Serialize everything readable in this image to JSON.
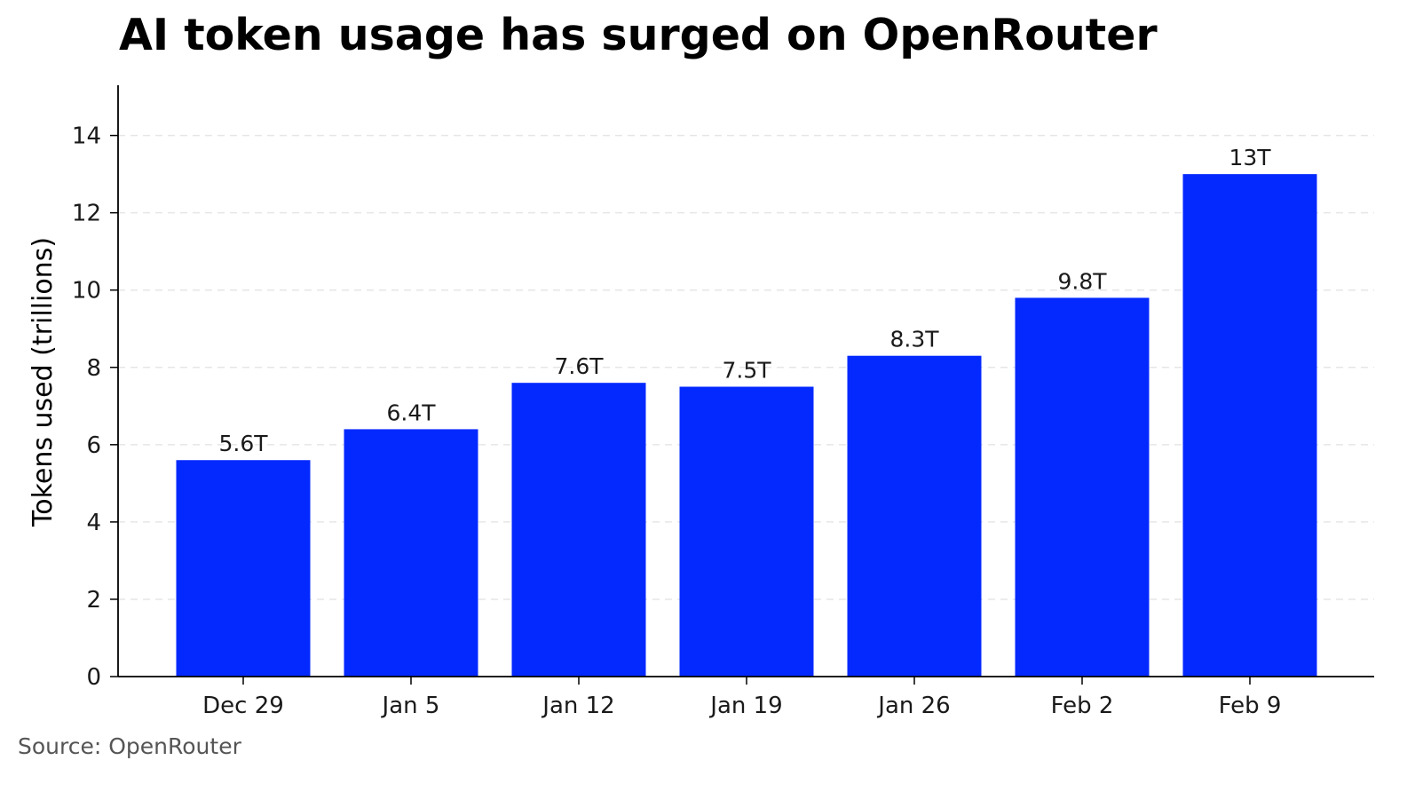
{
  "title": "AI token usage has surged on OpenRouter",
  "source": "Source: OpenRouter",
  "colors": {
    "bar": "#0429ff",
    "grid": "#e6e6e6",
    "axis": "#000000"
  },
  "chart_data": {
    "type": "bar",
    "title": "AI token usage has surged on OpenRouter",
    "xlabel": "",
    "ylabel": "Tokens used (trillions)",
    "categories": [
      "Dec 29",
      "Jan 5",
      "Jan 12",
      "Jan 19",
      "Jan 26",
      "Feb 2",
      "Feb 9"
    ],
    "values": [
      5.6,
      6.4,
      7.6,
      7.5,
      8.3,
      9.8,
      13
    ],
    "data_labels": [
      "5.6T",
      "6.4T",
      "7.6T",
      "7.5T",
      "8.3T",
      "9.8T",
      "13T"
    ],
    "yticks": [
      0,
      2,
      4,
      6,
      8,
      10,
      12,
      14
    ],
    "ylim": [
      0,
      15.3
    ],
    "grid": "horizontal dashed",
    "legend": "none"
  }
}
